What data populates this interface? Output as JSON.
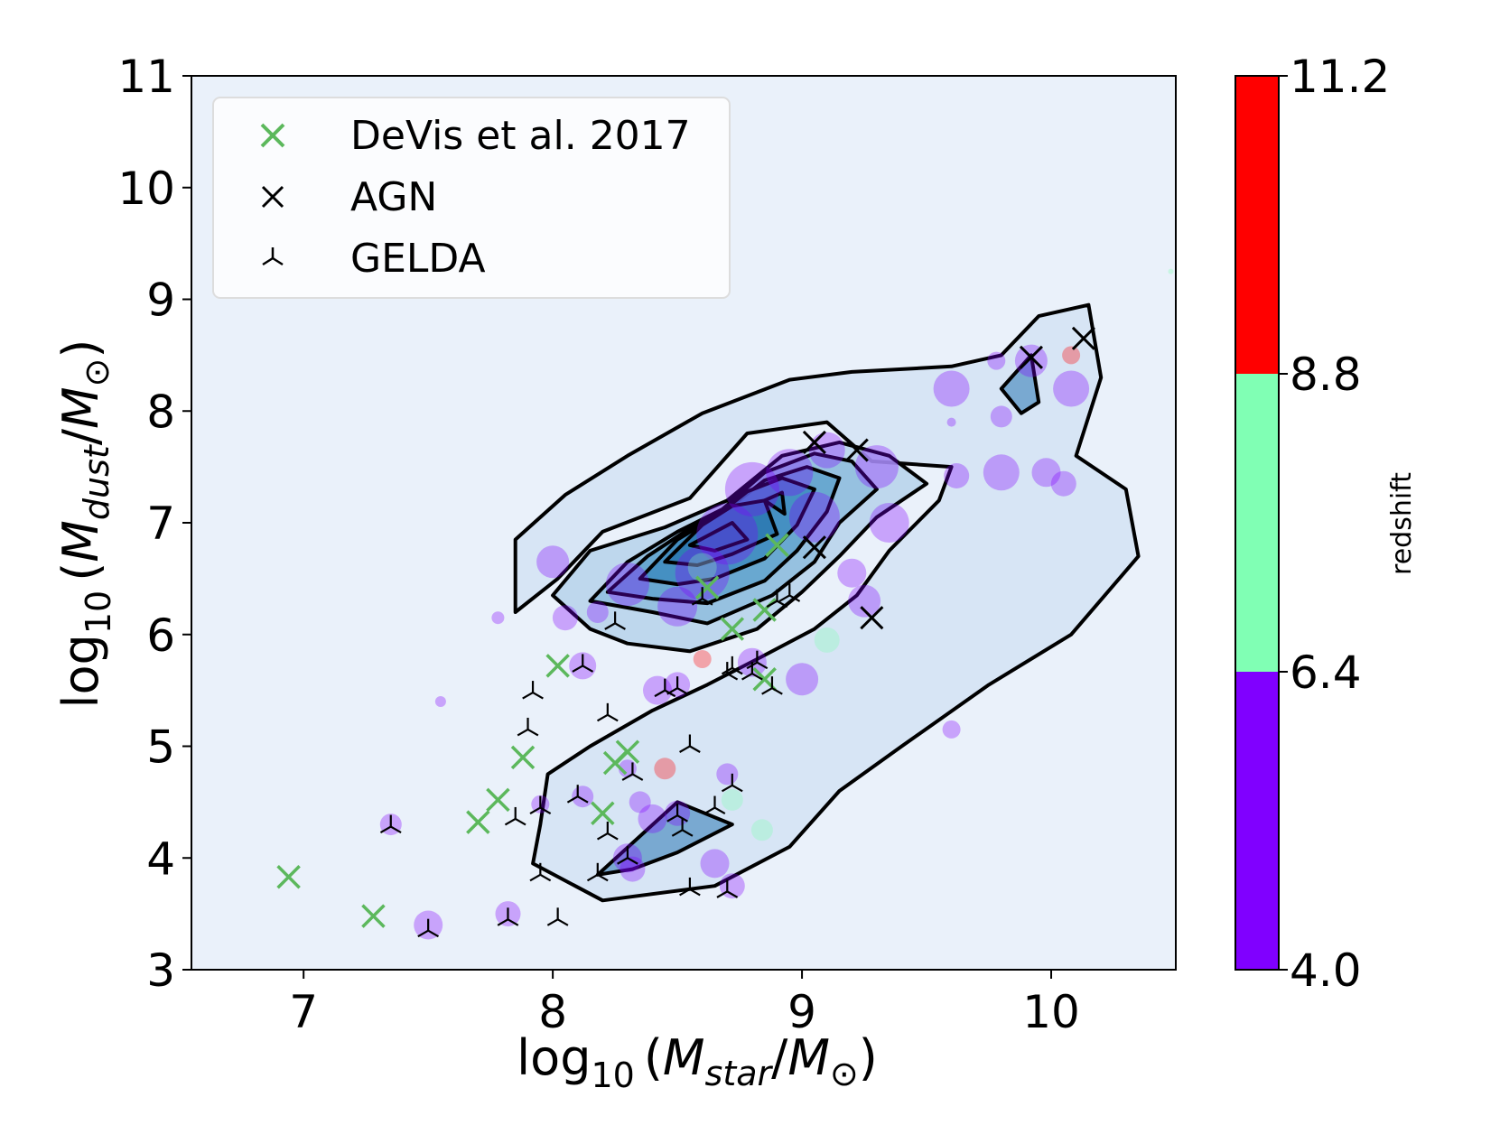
{
  "chart_data": {
    "type": "scatter",
    "xlabel": {
      "prefix": "log",
      "sub": "10",
      "var": "M",
      "var_sub": "star",
      "unit": "M",
      "unit_sub": "⊙"
    },
    "ylabel": {
      "prefix": "log",
      "sub": "10",
      "var": "M",
      "var_sub": "dust",
      "unit": "M",
      "unit_sub": "⊙"
    },
    "xlim": [
      6.55,
      10.5
    ],
    "ylim": [
      3,
      11
    ],
    "x_ticks": [
      7,
      8,
      9,
      10
    ],
    "y_ticks": [
      3,
      4,
      5,
      6,
      7,
      8,
      9,
      10,
      11
    ],
    "legend": {
      "placement": "top-left",
      "entries": [
        {
          "label": "DeVis et al. 2017",
          "marker": "x",
          "color": "#5cb85c"
        },
        {
          "label": "AGN",
          "marker": "x",
          "color": "#000000"
        },
        {
          "label": "GELDA",
          "marker": "tri_down",
          "color": "#000000"
        }
      ]
    },
    "colorbar": {
      "label": "redshift",
      "ticks": [
        "4.0",
        "6.4",
        "8.8",
        "11.2"
      ],
      "bins": [
        {
          "from": 4.0,
          "to": 6.4,
          "color": "#8000ff"
        },
        {
          "from": 6.4,
          "to": 8.8,
          "color": "#80ffb4"
        },
        {
          "from": 8.8,
          "to": 11.2,
          "color": "#ff0000"
        }
      ]
    },
    "colors": {
      "plot_background": "#eaf1fa",
      "contour_line": "#000000",
      "contour_fills": [
        "#d3e3f3",
        "#b6d2ea",
        "#8fbddd",
        "#62a3cc",
        "#3f8cbf",
        "#2b79b2"
      ]
    },
    "contours": [
      [
        [
          7.85,
          6.2
        ],
        [
          8.02,
          6.5
        ],
        [
          8.2,
          6.92
        ],
        [
          8.55,
          7.22
        ],
        [
          8.78,
          7.8
        ],
        [
          9.1,
          7.9
        ],
        [
          9.28,
          7.55
        ],
        [
          9.6,
          7.5
        ],
        [
          9.55,
          7.2
        ],
        [
          9.35,
          6.75
        ],
        [
          9.22,
          6.35
        ],
        [
          9.05,
          6.05
        ],
        [
          8.82,
          5.78
        ],
        [
          8.62,
          5.55
        ],
        [
          8.4,
          5.32
        ],
        [
          8.15,
          5.0
        ],
        [
          7.98,
          4.75
        ],
        [
          7.95,
          4.3
        ],
        [
          7.92,
          3.95
        ],
        [
          8.2,
          3.62
        ],
        [
          8.65,
          3.75
        ],
        [
          8.95,
          4.1
        ],
        [
          9.15,
          4.6
        ],
        [
          9.4,
          5.0
        ],
        [
          9.75,
          5.55
        ],
        [
          10.08,
          6.0
        ],
        [
          10.35,
          6.7
        ],
        [
          10.3,
          7.3
        ],
        [
          10.1,
          7.6
        ],
        [
          10.2,
          8.3
        ],
        [
          10.15,
          8.95
        ],
        [
          9.95,
          8.85
        ],
        [
          9.8,
          8.5
        ],
        [
          9.6,
          8.4
        ],
        [
          9.2,
          8.35
        ],
        [
          8.95,
          8.28
        ],
        [
          8.6,
          7.98
        ],
        [
          8.3,
          7.6
        ],
        [
          8.05,
          7.25
        ],
        [
          7.85,
          6.85
        ]
      ],
      [
        [
          8.0,
          6.35
        ],
        [
          8.15,
          6.75
        ],
        [
          8.45,
          6.96
        ],
        [
          8.7,
          7.2
        ],
        [
          8.92,
          7.6
        ],
        [
          9.15,
          7.72
        ],
        [
          9.35,
          7.6
        ],
        [
          9.5,
          7.35
        ],
        [
          9.3,
          7.05
        ],
        [
          9.15,
          6.7
        ],
        [
          9.0,
          6.38
        ],
        [
          8.82,
          6.05
        ],
        [
          8.55,
          5.85
        ],
        [
          8.3,
          5.92
        ],
        [
          8.15,
          6.05
        ]
      ],
      [
        [
          8.15,
          6.3
        ],
        [
          8.3,
          6.65
        ],
        [
          8.5,
          6.92
        ],
        [
          8.68,
          7.12
        ],
        [
          8.85,
          7.45
        ],
        [
          9.05,
          7.62
        ],
        [
          9.2,
          7.55
        ],
        [
          9.3,
          7.3
        ],
        [
          9.15,
          7.0
        ],
        [
          9.05,
          6.65
        ],
        [
          8.88,
          6.35
        ],
        [
          8.62,
          6.1
        ],
        [
          8.4,
          6.2
        ]
      ],
      [
        [
          8.22,
          6.38
        ],
        [
          8.38,
          6.7
        ],
        [
          8.55,
          6.95
        ],
        [
          8.7,
          7.12
        ],
        [
          8.85,
          7.38
        ],
        [
          9.02,
          7.5
        ],
        [
          9.15,
          7.4
        ],
        [
          9.1,
          7.1
        ],
        [
          8.98,
          6.75
        ],
        [
          8.85,
          6.48
        ],
        [
          8.62,
          6.28
        ],
        [
          8.4,
          6.32
        ]
      ],
      [
        [
          8.35,
          6.5
        ],
        [
          8.5,
          6.85
        ],
        [
          8.65,
          7.05
        ],
        [
          8.78,
          7.28
        ],
        [
          8.92,
          7.4
        ],
        [
          9.05,
          7.3
        ],
        [
          8.98,
          6.98
        ],
        [
          8.85,
          6.68
        ],
        [
          8.65,
          6.5
        ],
        [
          8.5,
          6.45
        ]
      ],
      [
        [
          8.45,
          6.65
        ],
        [
          8.6,
          6.98
        ],
        [
          8.72,
          7.15
        ],
        [
          8.85,
          7.2
        ],
        [
          8.9,
          6.9
        ],
        [
          8.72,
          6.72
        ],
        [
          8.58,
          6.62
        ]
      ],
      [
        [
          8.55,
          6.8
        ],
        [
          8.72,
          7.0
        ],
        [
          8.78,
          6.85
        ],
        [
          8.65,
          6.75
        ]
      ],
      [
        [
          8.85,
          7.2
        ],
        [
          8.92,
          7.27
        ],
        [
          8.93,
          7.08
        ]
      ],
      [
        [
          8.18,
          3.85
        ],
        [
          8.5,
          4.5
        ],
        [
          8.72,
          4.3
        ],
        [
          8.5,
          4.05
        ],
        [
          8.32,
          3.9
        ]
      ],
      [
        [
          9.8,
          8.2
        ],
        [
          9.92,
          8.5
        ],
        [
          9.95,
          8.08
        ],
        [
          9.88,
          7.98
        ]
      ]
    ],
    "points_bubble": [
      {
        "x": 7.5,
        "y": 3.4,
        "r": 16,
        "c": "#8000ff"
      },
      {
        "x": 7.35,
        "y": 4.3,
        "r": 12,
        "c": "#8000ff"
      },
      {
        "x": 7.82,
        "y": 3.5,
        "r": 14,
        "c": "#8000ff"
      },
      {
        "x": 7.55,
        "y": 5.4,
        "r": 6,
        "c": "#8000ff"
      },
      {
        "x": 7.78,
        "y": 6.15,
        "r": 7,
        "c": "#8000ff"
      },
      {
        "x": 8.0,
        "y": 6.65,
        "r": 18,
        "c": "#8000ff"
      },
      {
        "x": 8.05,
        "y": 6.15,
        "r": 14,
        "c": "#8000ff"
      },
      {
        "x": 8.12,
        "y": 5.72,
        "r": 15,
        "c": "#8000ff"
      },
      {
        "x": 8.3,
        "y": 6.45,
        "r": 24,
        "c": "#8000ff"
      },
      {
        "x": 8.42,
        "y": 5.5,
        "r": 16,
        "c": "#8000ff"
      },
      {
        "x": 8.5,
        "y": 5.55,
        "r": 14,
        "c": "#8000ff"
      },
      {
        "x": 8.5,
        "y": 6.25,
        "r": 22,
        "c": "#8000ff"
      },
      {
        "x": 8.6,
        "y": 6.55,
        "r": 30,
        "c": "#8000ff"
      },
      {
        "x": 8.7,
        "y": 6.9,
        "r": 34,
        "c": "#8000ff"
      },
      {
        "x": 8.8,
        "y": 7.3,
        "r": 30,
        "c": "#8000ff"
      },
      {
        "x": 8.95,
        "y": 7.45,
        "r": 26,
        "c": "#8000ff"
      },
      {
        "x": 9.05,
        "y": 7.05,
        "r": 28,
        "c": "#8000ff"
      },
      {
        "x": 9.1,
        "y": 7.65,
        "r": 20,
        "c": "#8000ff"
      },
      {
        "x": 9.3,
        "y": 7.5,
        "r": 24,
        "c": "#8000ff"
      },
      {
        "x": 9.35,
        "y": 7.0,
        "r": 22,
        "c": "#8000ff"
      },
      {
        "x": 9.25,
        "y": 6.3,
        "r": 18,
        "c": "#8000ff"
      },
      {
        "x": 9.0,
        "y": 5.6,
        "r": 18,
        "c": "#8000ff"
      },
      {
        "x": 8.8,
        "y": 5.75,
        "r": 16,
        "c": "#8000ff"
      },
      {
        "x": 9.2,
        "y": 6.55,
        "r": 16,
        "c": "#8000ff"
      },
      {
        "x": 9.6,
        "y": 8.2,
        "r": 20,
        "c": "#8000ff"
      },
      {
        "x": 9.62,
        "y": 7.42,
        "r": 14,
        "c": "#8000ff"
      },
      {
        "x": 9.8,
        "y": 7.45,
        "r": 20,
        "c": "#8000ff"
      },
      {
        "x": 9.98,
        "y": 7.45,
        "r": 16,
        "c": "#8000ff"
      },
      {
        "x": 10.08,
        "y": 8.2,
        "r": 20,
        "c": "#8000ff"
      },
      {
        "x": 9.92,
        "y": 8.45,
        "r": 18,
        "c": "#8000ff"
      },
      {
        "x": 9.78,
        "y": 8.45,
        "r": 10,
        "c": "#8000ff"
      },
      {
        "x": 9.8,
        "y": 7.95,
        "r": 12,
        "c": "#8000ff"
      },
      {
        "x": 10.05,
        "y": 7.35,
        "r": 14,
        "c": "#8000ff"
      },
      {
        "x": 9.6,
        "y": 5.15,
        "r": 10,
        "c": "#8000ff"
      },
      {
        "x": 8.35,
        "y": 4.5,
        "r": 12,
        "c": "#8000ff"
      },
      {
        "x": 8.4,
        "y": 4.35,
        "r": 16,
        "c": "#8000ff"
      },
      {
        "x": 8.5,
        "y": 4.4,
        "r": 14,
        "c": "#8000ff"
      },
      {
        "x": 8.3,
        "y": 4.0,
        "r": 16,
        "c": "#8000ff"
      },
      {
        "x": 8.32,
        "y": 3.9,
        "r": 14,
        "c": "#8000ff"
      },
      {
        "x": 8.65,
        "y": 3.95,
        "r": 16,
        "c": "#8000ff"
      },
      {
        "x": 8.72,
        "y": 3.75,
        "r": 14,
        "c": "#8000ff"
      },
      {
        "x": 8.12,
        "y": 4.55,
        "r": 12,
        "c": "#8000ff"
      },
      {
        "x": 8.7,
        "y": 4.75,
        "r": 12,
        "c": "#8000ff"
      },
      {
        "x": 8.3,
        "y": 4.8,
        "r": 10,
        "c": "#8000ff"
      },
      {
        "x": 7.95,
        "y": 4.48,
        "r": 10,
        "c": "#8000ff"
      },
      {
        "x": 8.18,
        "y": 6.2,
        "r": 12,
        "c": "#8000ff"
      },
      {
        "x": 9.6,
        "y": 7.9,
        "r": 5,
        "c": "#8000ff"
      },
      {
        "x": 8.45,
        "y": 4.8,
        "r": 12,
        "c": "#ff0000"
      },
      {
        "x": 8.6,
        "y": 5.78,
        "r": 10,
        "c": "#ff0000"
      },
      {
        "x": 10.08,
        "y": 8.5,
        "r": 10,
        "c": "#ff0000"
      },
      {
        "x": 8.6,
        "y": 6.6,
        "r": 16,
        "c": "#80ffb4"
      },
      {
        "x": 8.72,
        "y": 4.52,
        "r": 12,
        "c": "#80ffb4"
      },
      {
        "x": 8.84,
        "y": 4.25,
        "r": 12,
        "c": "#80ffb4"
      },
      {
        "x": 9.1,
        "y": 5.95,
        "r": 14,
        "c": "#80ffb4"
      },
      {
        "x": 10.48,
        "y": 9.25,
        "r": 3,
        "c": "#80ffb4"
      }
    ],
    "points_devis": [
      {
        "x": 6.94,
        "y": 3.83
      },
      {
        "x": 7.28,
        "y": 3.48
      },
      {
        "x": 7.7,
        "y": 4.32
      },
      {
        "x": 7.78,
        "y": 4.52
      },
      {
        "x": 7.88,
        "y": 4.9
      },
      {
        "x": 8.02,
        "y": 5.72
      },
      {
        "x": 8.2,
        "y": 4.4
      },
      {
        "x": 8.25,
        "y": 4.85
      },
      {
        "x": 8.3,
        "y": 4.95
      },
      {
        "x": 8.62,
        "y": 6.42
      },
      {
        "x": 8.72,
        "y": 6.05
      },
      {
        "x": 8.85,
        "y": 6.22
      },
      {
        "x": 8.9,
        "y": 6.8
      },
      {
        "x": 8.85,
        "y": 5.6
      }
    ],
    "points_agn": [
      {
        "x": 10.13,
        "y": 8.65
      },
      {
        "x": 9.92,
        "y": 8.48
      },
      {
        "x": 9.05,
        "y": 7.72
      },
      {
        "x": 9.22,
        "y": 7.65
      },
      {
        "x": 9.05,
        "y": 6.78
      },
      {
        "x": 9.28,
        "y": 6.15
      }
    ],
    "points_gelda": [
      {
        "x": 7.5,
        "y": 3.35
      },
      {
        "x": 7.82,
        "y": 3.45
      },
      {
        "x": 8.02,
        "y": 3.45
      },
      {
        "x": 7.35,
        "y": 4.28
      },
      {
        "x": 7.85,
        "y": 4.35
      },
      {
        "x": 7.95,
        "y": 4.45
      },
      {
        "x": 7.95,
        "y": 3.85
      },
      {
        "x": 7.9,
        "y": 5.15
      },
      {
        "x": 7.92,
        "y": 5.48
      },
      {
        "x": 8.1,
        "y": 4.55
      },
      {
        "x": 8.18,
        "y": 3.85
      },
      {
        "x": 8.22,
        "y": 4.22
      },
      {
        "x": 8.3,
        "y": 4.0
      },
      {
        "x": 8.32,
        "y": 4.75
      },
      {
        "x": 8.22,
        "y": 5.28
      },
      {
        "x": 8.12,
        "y": 5.72
      },
      {
        "x": 8.5,
        "y": 4.38
      },
      {
        "x": 8.52,
        "y": 4.25
      },
      {
        "x": 8.55,
        "y": 5.0
      },
      {
        "x": 8.55,
        "y": 3.72
      },
      {
        "x": 8.65,
        "y": 4.45
      },
      {
        "x": 8.7,
        "y": 3.7
      },
      {
        "x": 8.72,
        "y": 4.65
      },
      {
        "x": 8.7,
        "y": 5.65
      },
      {
        "x": 8.82,
        "y": 5.75
      },
      {
        "x": 8.88,
        "y": 5.52
      },
      {
        "x": 8.45,
        "y": 5.5
      },
      {
        "x": 8.5,
        "y": 5.52
      },
      {
        "x": 8.25,
        "y": 6.1
      },
      {
        "x": 8.6,
        "y": 6.32
      },
      {
        "x": 8.9,
        "y": 6.3
      },
      {
        "x": 8.95,
        "y": 6.35
      },
      {
        "x": 8.8,
        "y": 5.65
      },
      {
        "x": 8.72,
        "y": 5.7
      }
    ]
  }
}
